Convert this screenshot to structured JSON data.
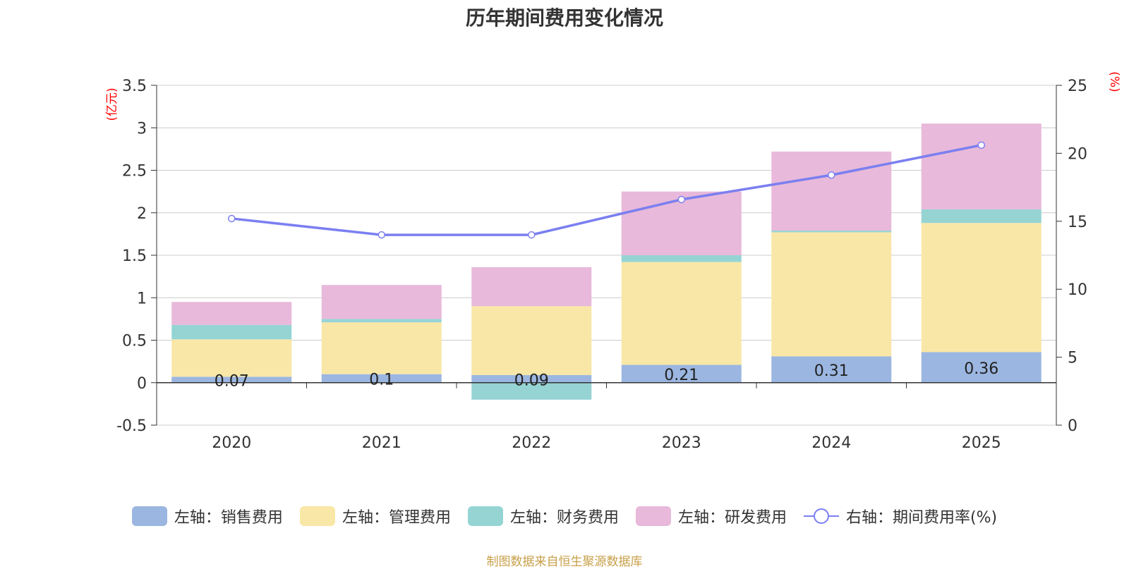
{
  "chart_data": {
    "type": "bar",
    "title": "历年期间费用变化情况",
    "categories": [
      "2020",
      "2021",
      "2022",
      "2023",
      "2024",
      "2025"
    ],
    "left_axis": {
      "unit_label": "(亿元)",
      "ylim": [
        -0.5,
        3.5
      ],
      "ticks": [
        -0.5,
        0,
        0.5,
        1,
        1.5,
        2,
        2.5,
        3,
        3.5
      ]
    },
    "right_axis": {
      "unit_label": "(%)",
      "ylim": [
        0,
        25
      ],
      "ticks": [
        0,
        5,
        10,
        15,
        20,
        25
      ]
    },
    "series": [
      {
        "name": "左轴：销售费用",
        "axis": "left",
        "stack": true,
        "color": "#9bb6e0",
        "values": [
          0.07,
          0.1,
          0.09,
          0.21,
          0.31,
          0.36
        ],
        "labels": [
          "0.07",
          "0.1",
          "0.09",
          "0.21",
          "0.31",
          "0.36"
        ]
      },
      {
        "name": "左轴：管理费用",
        "axis": "left",
        "stack": true,
        "color": "#f9e7a7",
        "values": [
          0.44,
          0.61,
          0.81,
          1.21,
          1.46,
          1.52
        ]
      },
      {
        "name": "左轴：财务费用",
        "axis": "left",
        "stack": true,
        "color": "#96d4d4",
        "values": [
          0.17,
          0.04,
          -0.2,
          0.08,
          0.02,
          0.16
        ]
      },
      {
        "name": "左轴：研发费用",
        "axis": "left",
        "stack": true,
        "color": "#e8b9da",
        "values": [
          0.27,
          0.4,
          0.46,
          0.75,
          0.93,
          1.01
        ]
      },
      {
        "name": "右轴：期间费用率(%)",
        "axis": "right",
        "type": "line",
        "color": "#7b7ff0",
        "values": [
          15.2,
          14.0,
          14.0,
          16.6,
          18.4,
          20.6
        ]
      }
    ],
    "grid": true,
    "legend_position": "bottom"
  },
  "source_note": "制图数据来自恒生聚源数据库"
}
